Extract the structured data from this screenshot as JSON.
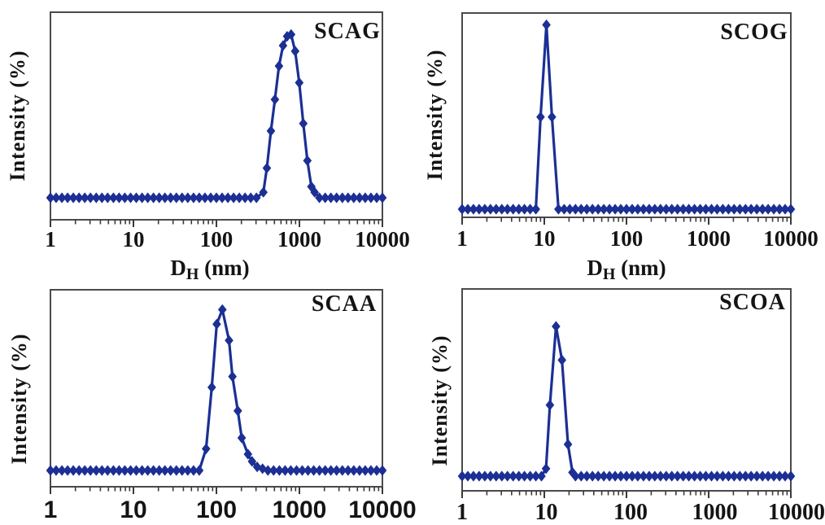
{
  "colors": {
    "series": "#1b2f94",
    "axis": "#4a4a4a",
    "tick": "#3a3a3a",
    "text": "#141414",
    "background": "#ffffff"
  },
  "chart_data": [
    {
      "type": "line",
      "id": "scag",
      "title": "SCAG",
      "xlabel": "D_H (nm)",
      "ylabel": "Intensity (%)",
      "x_scale": "log",
      "x_range": [
        1,
        10000
      ],
      "x_ticks": [
        "1",
        "10",
        "100",
        "1000",
        "10000"
      ],
      "y_axis_numbers_visible": false,
      "marker": "diamond",
      "peak_dh_nm": 795,
      "baseline": {
        "x_start": 1,
        "x_end": 10000,
        "points_per_decade": 14.5,
        "relative_intensity": 0
      },
      "peak_points": [
        [
          368,
          3
        ],
        [
          405,
          16
        ],
        [
          454,
          36
        ],
        [
          507,
          53
        ],
        [
          568,
          71
        ],
        [
          635,
          82
        ],
        [
          711,
          87
        ],
        [
          795,
          88
        ],
        [
          889,
          79
        ],
        [
          995,
          62
        ],
        [
          1114,
          40
        ],
        [
          1247,
          20
        ],
        [
          1394,
          6
        ],
        [
          1524,
          3
        ]
      ]
    },
    {
      "type": "line",
      "id": "scog",
      "title": "SCOG",
      "xlabel": "D_H (nm)",
      "ylabel": "Intensity (%)",
      "x_scale": "log",
      "x_range": [
        1,
        10000
      ],
      "x_ticks": [
        "1",
        "10",
        "100",
        "1000",
        "10000"
      ],
      "y_axis_numbers_visible": false,
      "marker": "diamond",
      "peak_dh_nm": 10.6,
      "baseline": {
        "x_start": 1,
        "x_end": 10000,
        "points_per_decade": 14.5,
        "relative_intensity": 0
      },
      "peak_points": [
        [
          9.0,
          47
        ],
        [
          10.6,
          94
        ],
        [
          12.4,
          47
        ]
      ]
    },
    {
      "type": "line",
      "id": "scaa",
      "title": "SCAA",
      "xlabel": "",
      "ylabel": "Intensity (%)",
      "x_scale": "log",
      "x_range": [
        1,
        10000
      ],
      "x_ticks": [
        "1",
        "10",
        "100",
        "1000",
        "10000"
      ],
      "y_axis_numbers_visible": false,
      "marker": "diamond",
      "peak_dh_nm": 118,
      "baseline": {
        "x_start": 1,
        "x_end": 10000,
        "points_per_decade": 14.5,
        "relative_intensity": 0
      },
      "peak_points": [
        [
          75,
          12
        ],
        [
          88,
          46
        ],
        [
          101,
          81
        ],
        [
          118,
          89
        ],
        [
          142,
          72
        ],
        [
          156,
          52
        ],
        [
          181,
          33
        ],
        [
          202,
          18
        ],
        [
          240,
          9
        ],
        [
          269,
          5
        ],
        [
          310,
          2
        ],
        [
          360,
          1
        ]
      ]
    },
    {
      "type": "line",
      "id": "scoa",
      "title": "SCOA",
      "xlabel": "",
      "ylabel": "Intensity (%)",
      "x_scale": "log",
      "x_range": [
        1,
        10000
      ],
      "x_ticks": [
        "1",
        "10",
        "100",
        "1000",
        "10000"
      ],
      "y_axis_numbers_visible": false,
      "marker": "diamond",
      "peak_dh_nm": 13.9,
      "baseline": {
        "x_start": 1,
        "x_end": 10000,
        "points_per_decade": 14.5,
        "relative_intensity": 0
      },
      "peak_points": [
        [
          10.5,
          4
        ],
        [
          11.7,
          38
        ],
        [
          13.9,
          80
        ],
        [
          16.4,
          62
        ],
        [
          19.4,
          17
        ],
        [
          22.0,
          2
        ]
      ]
    }
  ]
}
